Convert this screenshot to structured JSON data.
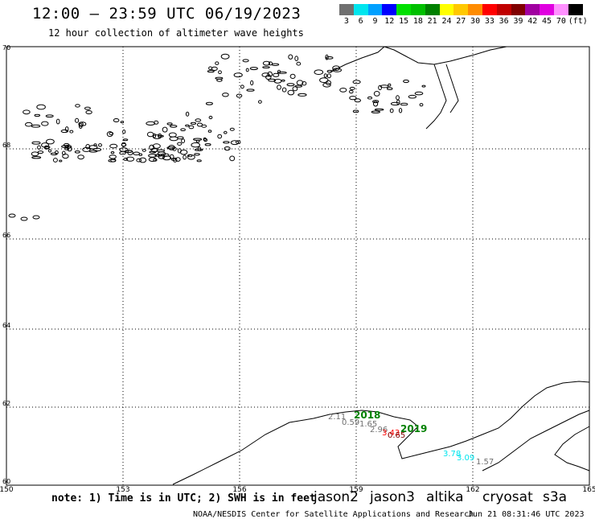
{
  "header": {
    "title": "12:00 – 23:59 UTC 06/19/2023",
    "subtitle": "12 hour collection of altimeter wave heights"
  },
  "scale": {
    "labels": [
      "3",
      "6",
      "9",
      "12",
      "15",
      "18",
      "21",
      "24",
      "27",
      "30",
      "33",
      "36",
      "39",
      "42",
      "45",
      "70",
      "(ft)"
    ],
    "colors": [
      "#707070",
      "#00e5ee",
      "#00a0ff",
      "#0000ff",
      "#00e000",
      "#00c000",
      "#008000",
      "#ffff00",
      "#ffc800",
      "#ff8c00",
      "#ff0000",
      "#c00000",
      "#800000",
      "#a000a0",
      "#e000e0",
      "#ff90ff",
      "#000000"
    ]
  },
  "axes": {
    "lon_labels": [
      "150",
      "153",
      "156",
      "159",
      "162",
      "165"
    ],
    "lat_labels": [
      "70",
      "68",
      "66",
      "64",
      "62",
      "60"
    ]
  },
  "obs": [
    {
      "text": "2.11",
      "color": "#707070"
    },
    {
      "text": "2018",
      "color": "#008000"
    },
    {
      "text": "0.59",
      "color": "#707070"
    },
    {
      "text": "1.65",
      "color": "#707070"
    },
    {
      "text": "2.96",
      "color": "#707070"
    },
    {
      "text": "2019",
      "color": "#008000"
    },
    {
      "text": "3.43",
      "color": "#ff0000"
    },
    {
      "text": "0.65",
      "color": "#800000"
    },
    {
      "text": "3.78",
      "color": "#00e5ee"
    },
    {
      "text": "3.09",
      "color": "#00e5ee"
    },
    {
      "text": "1.57",
      "color": "#707070"
    }
  ],
  "footer": {
    "note": "note: 1) Time is in UTC; 2) SWH is in feet",
    "satellites": [
      {
        "name": "jason2",
        "color": "#0000ff"
      },
      {
        "name": "jason3",
        "color": "#008000"
      },
      {
        "name": "altika",
        "color": "#ff8c00"
      },
      {
        "name": "cryosat",
        "color": "#ff0000"
      },
      {
        "name": "s3a",
        "color": "#c00000"
      }
    ],
    "credit": "NOAA/NESDIS Center for Satellite Applications and Research",
    "timestamp": "Jun 21 08:31:46 UTC 2023"
  }
}
